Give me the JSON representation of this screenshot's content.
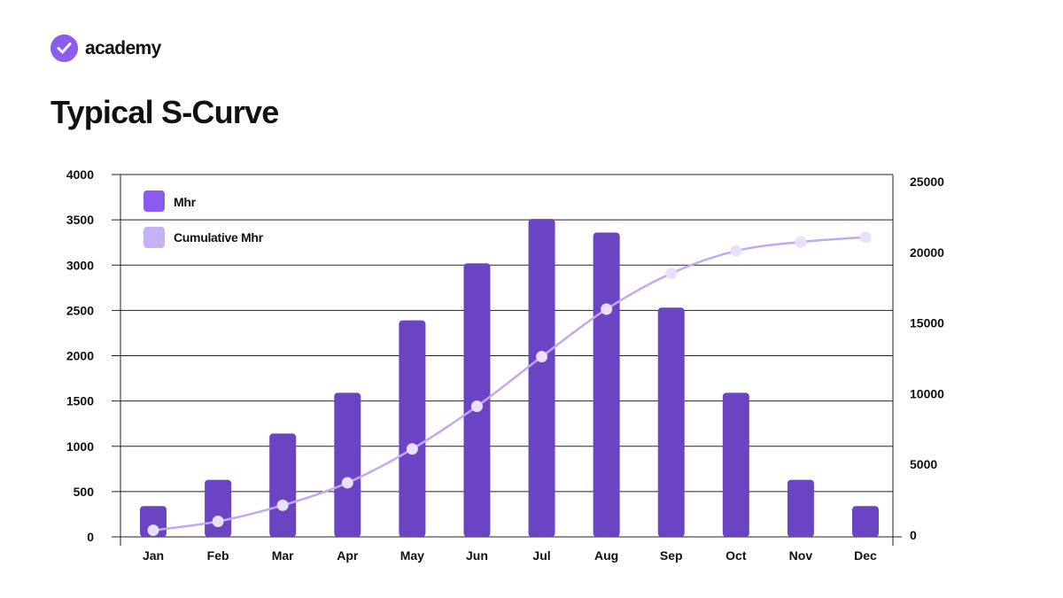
{
  "brand": {
    "name": "academy",
    "logo_icon": "checkmark-circle-icon"
  },
  "page_title": "Typical S-Curve",
  "colors": {
    "bar": "#6a44c2",
    "line": "#c2a8f4",
    "point": "#e9e0fb",
    "logo": "#8c5cf0",
    "legend_mhr": "#8c5cf0",
    "legend_cumulative": "#c6b1f6",
    "grid": "#222222"
  },
  "chart_data": {
    "type": "bar",
    "title": "",
    "xlabel": "",
    "ylabel": "",
    "categories": [
      "Jan",
      "Feb",
      "Mar",
      "Apr",
      "May",
      "Jun",
      "Jul",
      "Aug",
      "Sep",
      "Oct",
      "Nov",
      "Dec"
    ],
    "ylim": [
      0,
      4000
    ],
    "y_ticks": [
      "0",
      "500",
      "1000",
      "1500",
      "2000",
      "2500",
      "3000",
      "3500",
      "4000"
    ],
    "y2_ticks": [
      "0",
      "5000",
      "10000",
      "15000",
      "20000",
      "25000"
    ],
    "grid": true,
    "legend_position": "top-left",
    "series": [
      {
        "name": "Mhr",
        "type": "bar",
        "axis": "left",
        "values": [
          340,
          630,
          1140,
          1590,
          2390,
          3020,
          3510,
          3360,
          2530,
          1590,
          630,
          340
        ]
      },
      {
        "name": "Cumulative Mhr",
        "type": "line",
        "axis": "right",
        "values": [
          340,
          970,
          2110,
          3700,
          6090,
          9110,
          12620,
          15980,
          18510,
          20100,
          20730,
          21070
        ]
      }
    ]
  }
}
